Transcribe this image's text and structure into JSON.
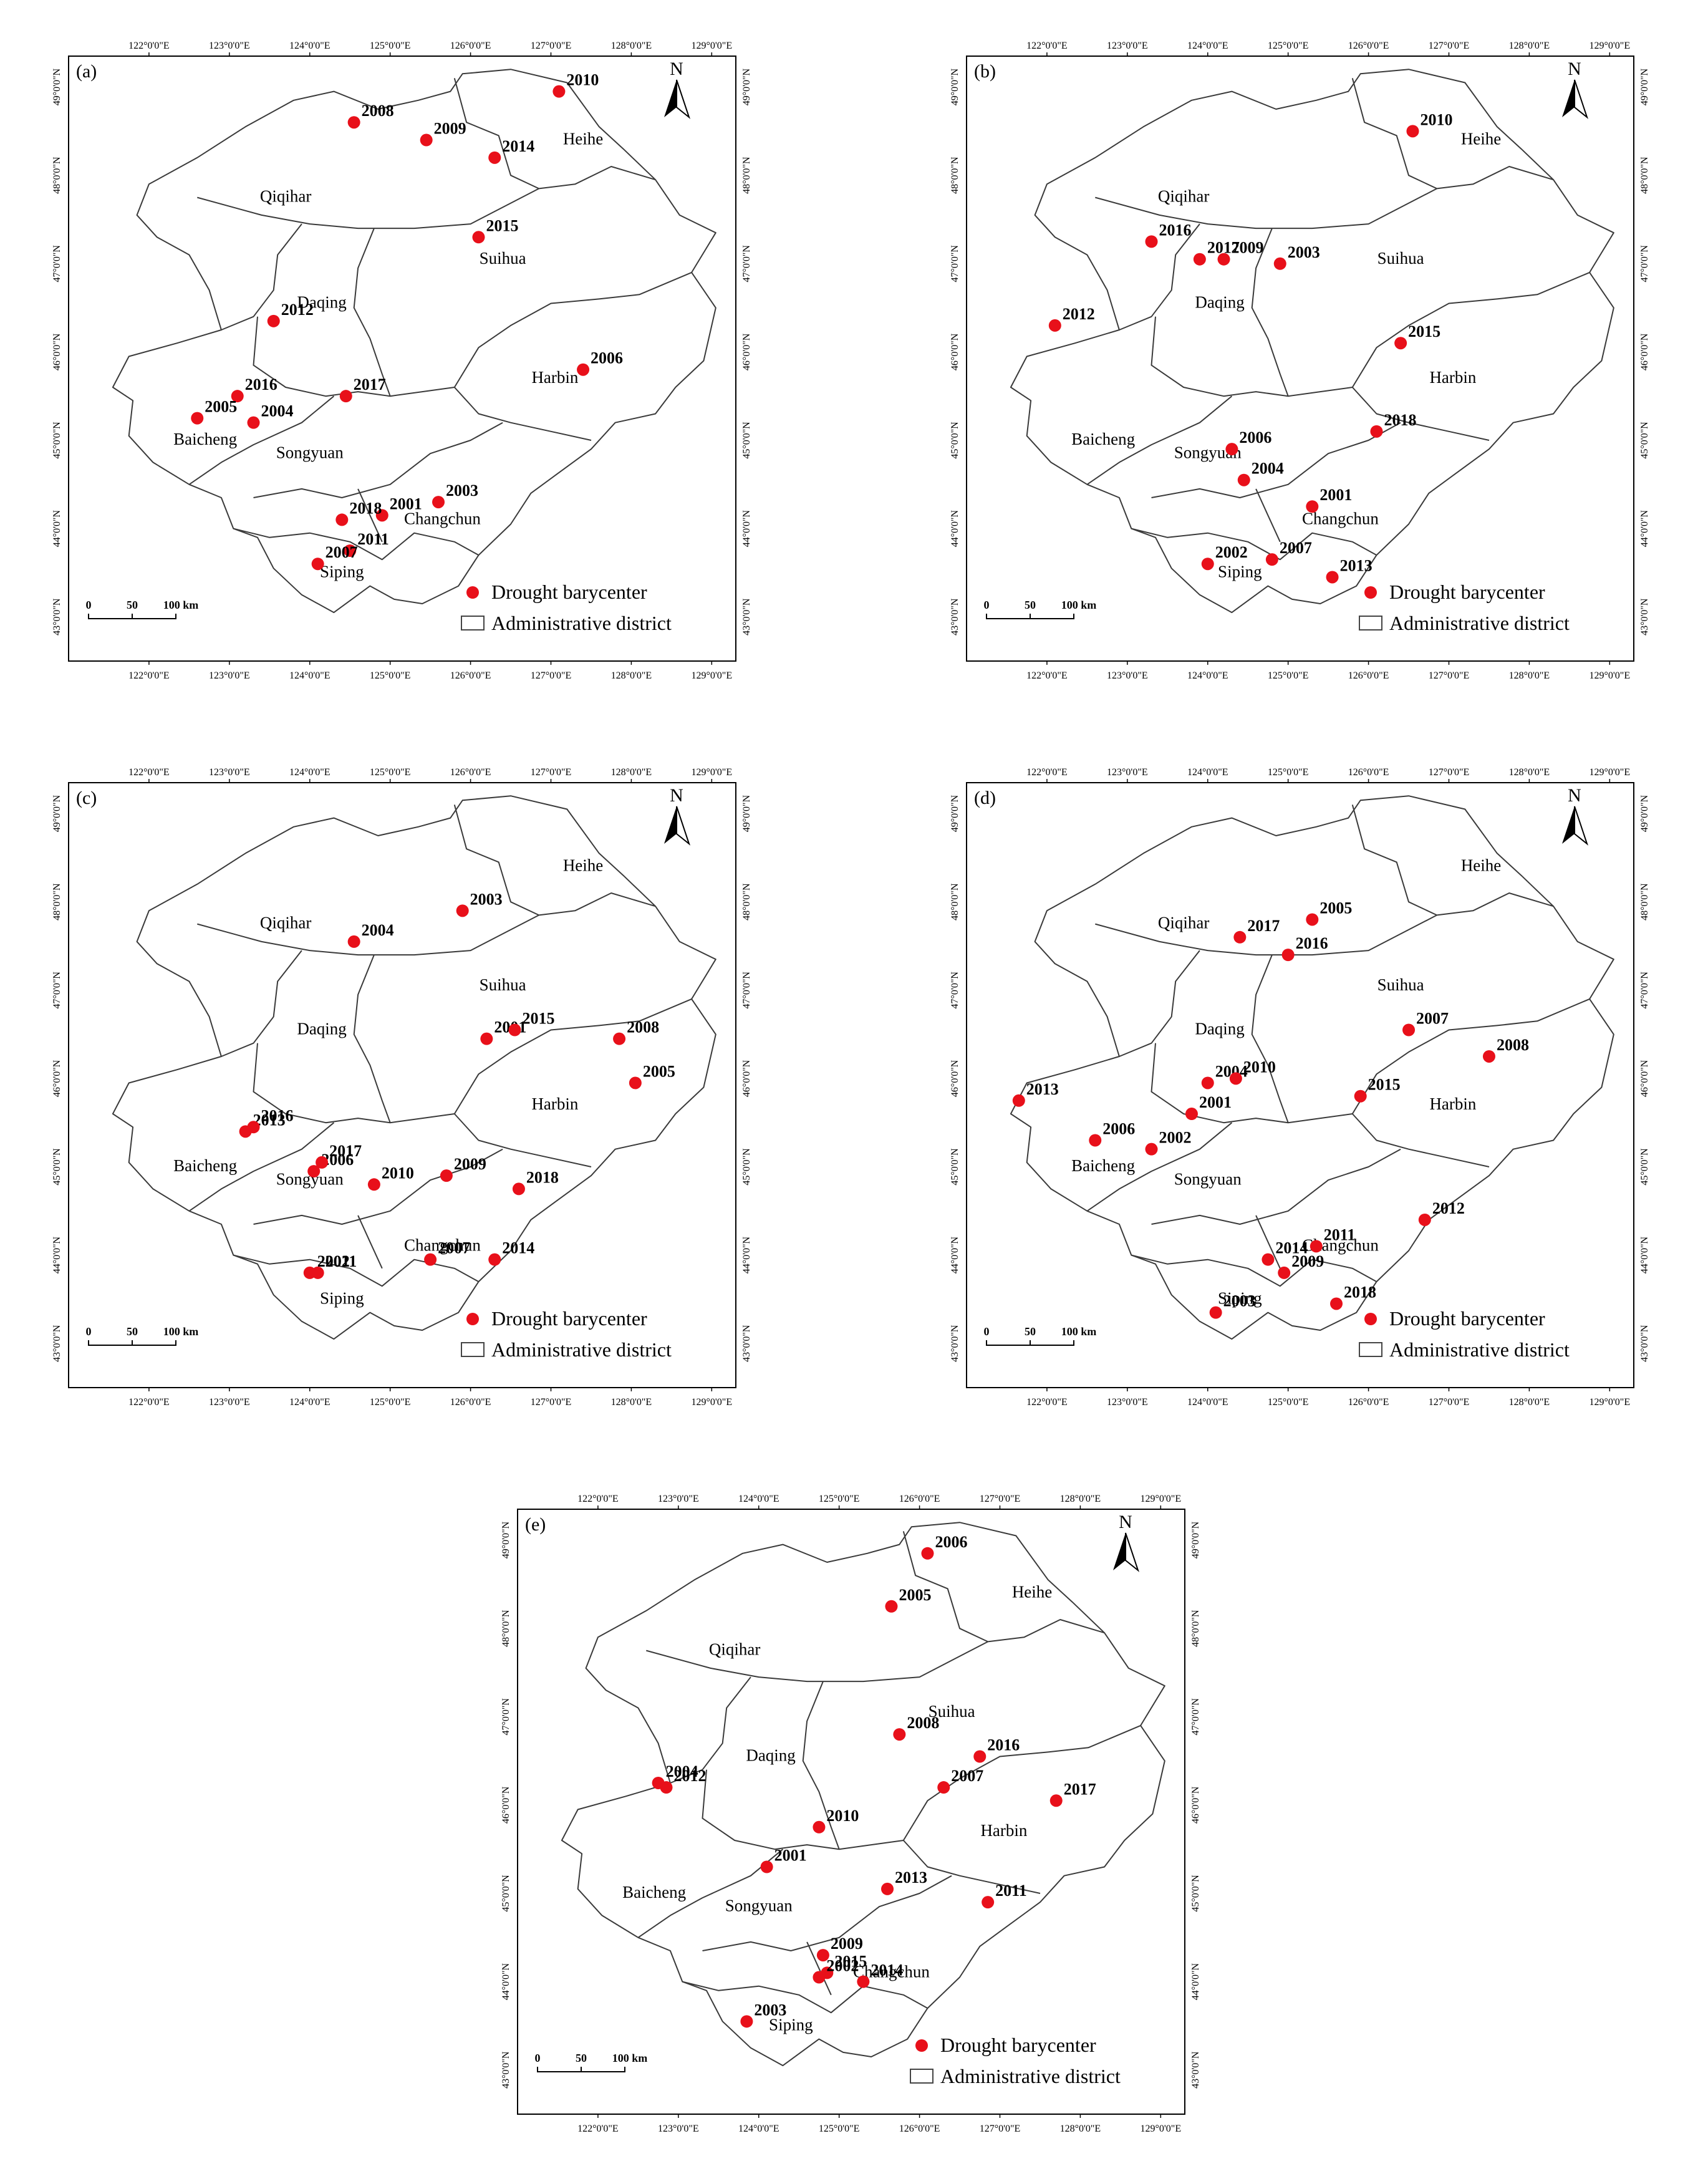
{
  "figure": {
    "lon_ticks": [
      "122°0'0\"E",
      "123°0'0\"E",
      "124°0'0\"E",
      "125°0'0\"E",
      "126°0'0\"E",
      "127°0'0\"E",
      "128°0'0\"E",
      "129°0'0\"E"
    ],
    "lat_ticks": [
      "49°0'0\"N",
      "48°0'0\"N",
      "47°0'0\"N",
      "46°0'0\"N",
      "45°0'0\"N",
      "44°0'0\"N",
      "43°0'0\"N"
    ],
    "north_label": "N",
    "scale_labels": [
      "0",
      "50",
      "100 km"
    ],
    "legend": {
      "point_label": "Drought barycenter",
      "district_label": "Administrative district"
    },
    "colors": {
      "point": "#e8101a",
      "boundary": "#3a3a3a",
      "frame": "#000000"
    },
    "districts": [
      "Heihe",
      "Qiqihar",
      "Suihua",
      "Daqing",
      "Harbin",
      "Baicheng",
      "Songyuan",
      "Changchun",
      "Siping"
    ],
    "panels": [
      {
        "label": "(a)",
        "points": [
          {
            "year": "2010",
            "lon": 127.1,
            "lat": 48.95
          },
          {
            "year": "2008",
            "lon": 124.55,
            "lat": 48.6
          },
          {
            "year": "2009",
            "lon": 125.45,
            "lat": 48.4
          },
          {
            "year": "2014",
            "lon": 126.3,
            "lat": 48.2
          },
          {
            "year": "2015",
            "lon": 126.1,
            "lat": 47.3
          },
          {
            "year": "2012",
            "lon": 123.55,
            "lat": 46.35
          },
          {
            "year": "2006",
            "lon": 127.4,
            "lat": 45.8
          },
          {
            "year": "2016",
            "lon": 123.1,
            "lat": 45.5
          },
          {
            "year": "2017",
            "lon": 124.45,
            "lat": 45.5
          },
          {
            "year": "2005",
            "lon": 122.6,
            "lat": 45.25
          },
          {
            "year": "2004",
            "lon": 123.3,
            "lat": 45.2
          },
          {
            "year": "2003",
            "lon": 125.6,
            "lat": 44.3
          },
          {
            "year": "2001",
            "lon": 124.9,
            "lat": 44.15
          },
          {
            "year": "2018",
            "lon": 124.4,
            "lat": 44.1
          },
          {
            "year": "2011",
            "lon": 124.5,
            "lat": 43.75
          },
          {
            "year": "2007",
            "lon": 124.1,
            "lat": 43.6
          }
        ]
      },
      {
        "label": "(b)",
        "points": [
          {
            "year": "2010",
            "lon": 126.55,
            "lat": 48.5
          },
          {
            "year": "2016",
            "lon": 123.3,
            "lat": 47.25
          },
          {
            "year": "2017",
            "lon": 123.9,
            "lat": 47.05
          },
          {
            "year": "2009",
            "lon": 124.2,
            "lat": 47.05
          },
          {
            "year": "2003",
            "lon": 124.9,
            "lat": 47.0
          },
          {
            "year": "2012",
            "lon": 122.1,
            "lat": 46.3
          },
          {
            "year": "2015",
            "lon": 126.4,
            "lat": 46.1
          },
          {
            "year": "2018",
            "lon": 126.1,
            "lat": 45.1
          },
          {
            "year": "2006",
            "lon": 124.3,
            "lat": 44.9
          },
          {
            "year": "2004",
            "lon": 124.45,
            "lat": 44.55
          },
          {
            "year": "2001",
            "lon": 125.3,
            "lat": 44.25
          },
          {
            "year": "2007",
            "lon": 124.8,
            "lat": 43.65
          },
          {
            "year": "2002",
            "lon": 124.0,
            "lat": 43.6
          },
          {
            "year": "2013",
            "lon": 125.55,
            "lat": 43.45
          }
        ]
      },
      {
        "label": "(c)",
        "points": [
          {
            "year": "2003",
            "lon": 125.9,
            "lat": 47.9
          },
          {
            "year": "2004",
            "lon": 124.55,
            "lat": 47.55
          },
          {
            "year": "2001",
            "lon": 126.2,
            "lat": 46.45
          },
          {
            "year": "2015",
            "lon": 126.55,
            "lat": 46.55
          },
          {
            "year": "2008",
            "lon": 127.85,
            "lat": 46.45
          },
          {
            "year": "2005",
            "lon": 128.05,
            "lat": 45.95
          },
          {
            "year": "2013",
            "lon": 123.2,
            "lat": 45.4
          },
          {
            "year": "2016",
            "lon": 123.3,
            "lat": 45.45
          },
          {
            "year": "2006",
            "lon": 124.05,
            "lat": 44.95
          },
          {
            "year": "2017",
            "lon": 124.15,
            "lat": 45.05
          },
          {
            "year": "2010",
            "lon": 124.8,
            "lat": 44.8
          },
          {
            "year": "2009",
            "lon": 125.7,
            "lat": 44.9
          },
          {
            "year": "2018",
            "lon": 126.6,
            "lat": 44.75
          },
          {
            "year": "2007",
            "lon": 125.5,
            "lat": 43.95
          },
          {
            "year": "2014",
            "lon": 126.3,
            "lat": 43.95
          },
          {
            "year": "2002",
            "lon": 124.0,
            "lat": 43.8
          },
          {
            "year": "2011",
            "lon": 124.1,
            "lat": 43.8
          }
        ]
      },
      {
        "label": "(d)",
        "points": [
          {
            "year": "2005",
            "lon": 125.3,
            "lat": 47.8
          },
          {
            "year": "2017",
            "lon": 124.4,
            "lat": 47.6
          },
          {
            "year": "2016",
            "lon": 125.0,
            "lat": 47.4
          },
          {
            "year": "2007",
            "lon": 126.5,
            "lat": 46.55
          },
          {
            "year": "2008",
            "lon": 127.5,
            "lat": 46.25
          },
          {
            "year": "2004",
            "lon": 124.0,
            "lat": 45.95
          },
          {
            "year": "2010",
            "lon": 124.35,
            "lat": 46.0
          },
          {
            "year": "2001",
            "lon": 123.8,
            "lat": 45.6
          },
          {
            "year": "2015",
            "lon": 125.9,
            "lat": 45.8
          },
          {
            "year": "2013",
            "lon": 121.65,
            "lat": 45.75
          },
          {
            "year": "2006",
            "lon": 122.6,
            "lat": 45.3
          },
          {
            "year": "2002",
            "lon": 123.3,
            "lat": 45.2
          },
          {
            "year": "2012",
            "lon": 126.7,
            "lat": 44.4
          },
          {
            "year": "2011",
            "lon": 125.35,
            "lat": 44.1
          },
          {
            "year": "2014",
            "lon": 124.75,
            "lat": 43.95
          },
          {
            "year": "2009",
            "lon": 124.95,
            "lat": 43.8
          },
          {
            "year": "2018",
            "lon": 125.6,
            "lat": 43.45
          },
          {
            "year": "2003",
            "lon": 124.1,
            "lat": 43.35
          }
        ]
      },
      {
        "label": "(e)",
        "points": [
          {
            "year": "2006",
            "lon": 126.1,
            "lat": 48.85
          },
          {
            "year": "2005",
            "lon": 125.65,
            "lat": 48.25
          },
          {
            "year": "2008",
            "lon": 125.75,
            "lat": 46.8
          },
          {
            "year": "2016",
            "lon": 126.75,
            "lat": 46.55
          },
          {
            "year": "2004",
            "lon": 122.75,
            "lat": 46.25
          },
          {
            "year": "2012",
            "lon": 122.85,
            "lat": 46.2
          },
          {
            "year": "2007",
            "lon": 126.3,
            "lat": 46.2
          },
          {
            "year": "2017",
            "lon": 127.7,
            "lat": 46.05
          },
          {
            "year": "2010",
            "lon": 124.75,
            "lat": 45.75
          },
          {
            "year": "2001",
            "lon": 124.1,
            "lat": 45.3
          },
          {
            "year": "2013",
            "lon": 125.6,
            "lat": 45.05
          },
          {
            "year": "2011",
            "lon": 126.85,
            "lat": 44.9
          },
          {
            "year": "2009",
            "lon": 124.8,
            "lat": 44.3
          },
          {
            "year": "2015",
            "lon": 124.85,
            "lat": 44.1
          },
          {
            "year": "2002",
            "lon": 124.75,
            "lat": 44.05
          },
          {
            "year": "2014",
            "lon": 125.3,
            "lat": 44.0
          },
          {
            "year": "2003",
            "lon": 123.85,
            "lat": 43.55
          }
        ]
      }
    ]
  }
}
